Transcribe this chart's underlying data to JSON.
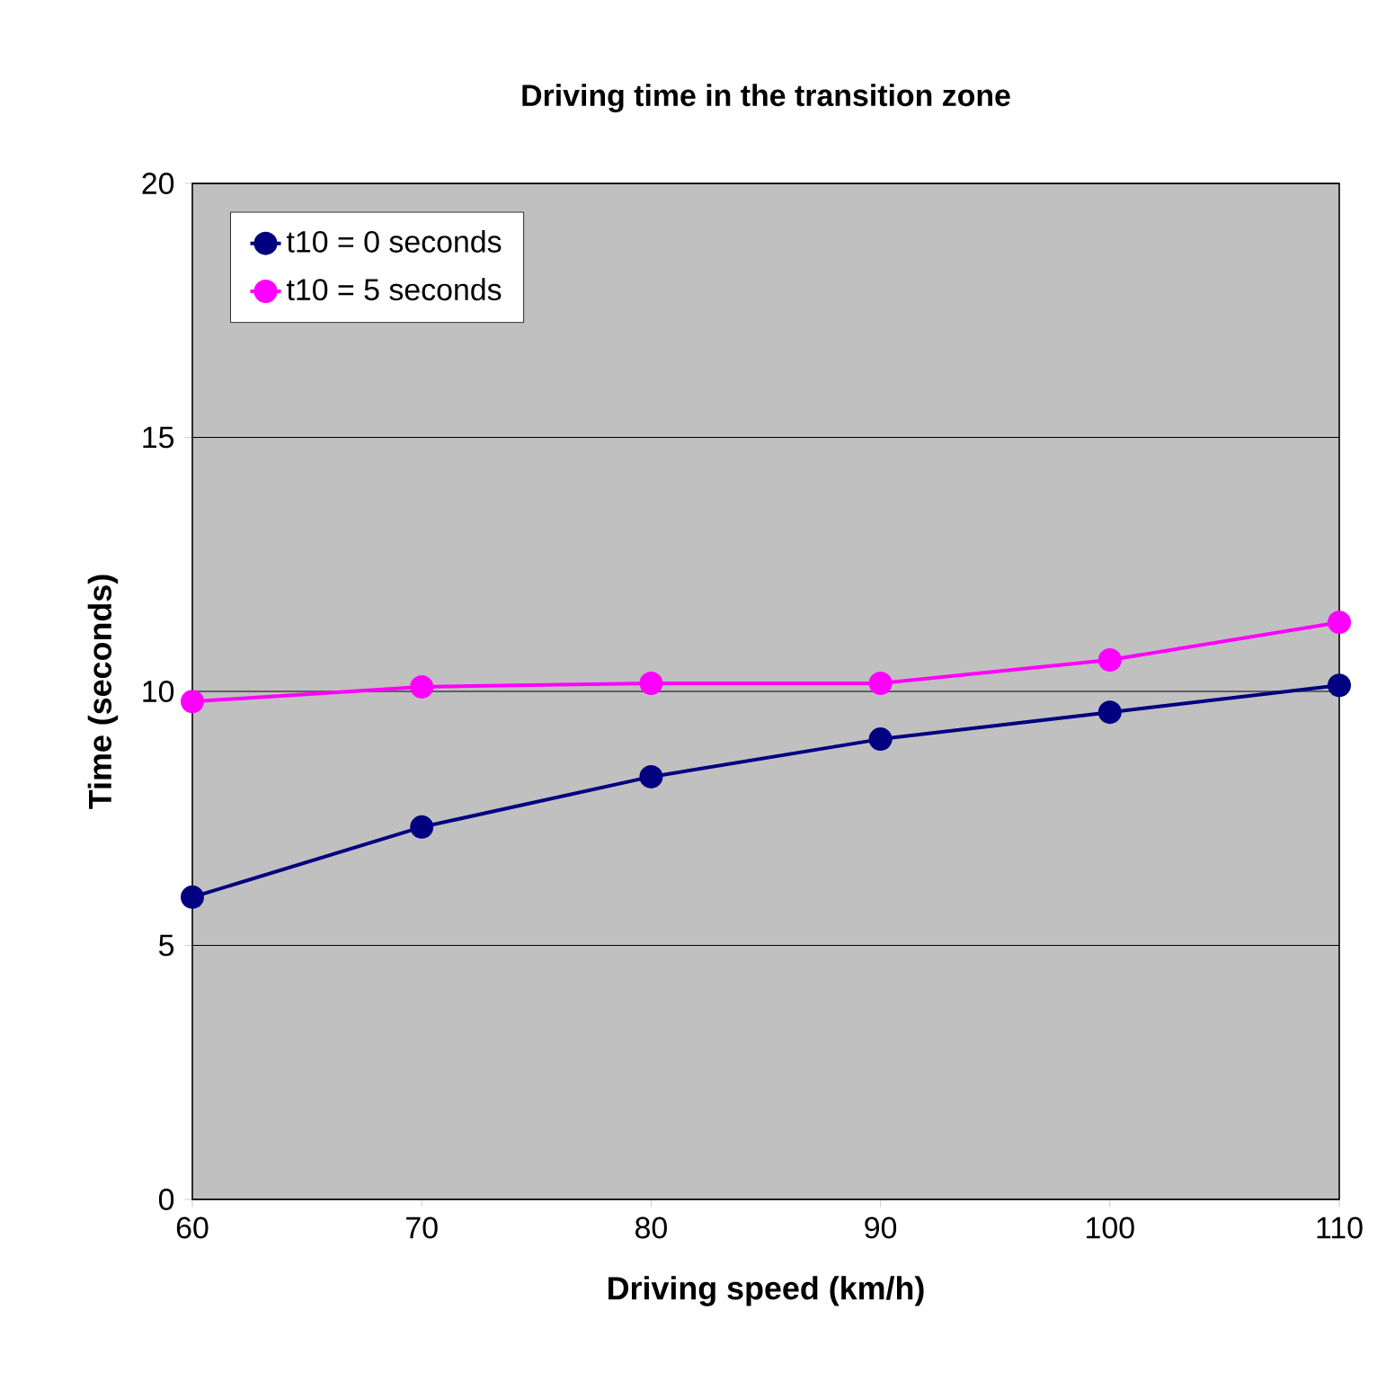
{
  "chart_data": {
    "type": "line",
    "title": "Driving time in the transition zone",
    "xlabel": "Driving speed (km/h)",
    "ylabel": "Time (seconds)",
    "x": [
      60,
      70,
      80,
      90,
      100,
      110
    ],
    "series": [
      {
        "name": "t10 = 0 seconds",
        "color": "#000080",
        "values": [
          5.95,
          7.33,
          8.32,
          9.06,
          9.59,
          10.12
        ]
      },
      {
        "name": "t10 = 5 seconds",
        "color": "#ff00ff",
        "values": [
          9.8,
          10.09,
          10.16,
          10.16,
          10.62,
          11.36
        ]
      }
    ],
    "xlim": [
      60,
      110
    ],
    "xticks": [
      60,
      70,
      80,
      90,
      100,
      110
    ],
    "ylim": [
      0,
      20
    ],
    "yticks": [
      0,
      5,
      10,
      15,
      20
    ],
    "grid": "y",
    "legend": "top left",
    "marker": "circle",
    "line_style": "solid"
  }
}
